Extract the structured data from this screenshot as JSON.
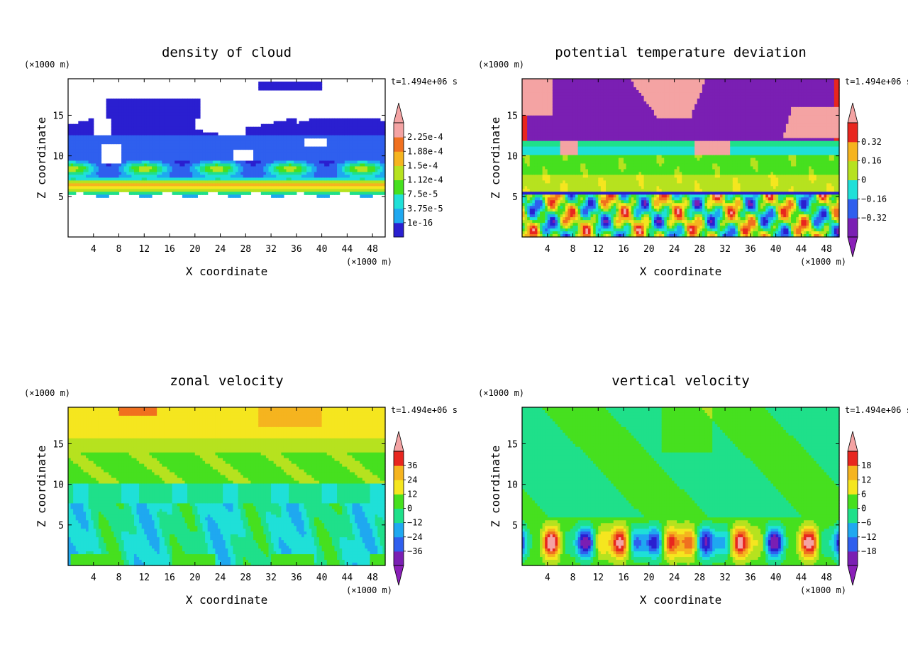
{
  "chart_data": [
    {
      "type": "heatmap",
      "title": "density of cloud",
      "xlabel": "X coordinate",
      "ylabel": "Z coordinate",
      "x_unit": "(×1000 m)",
      "y_unit": "(×1000 m)",
      "time_label": "t=1.494e+06 s",
      "xlim": [
        0,
        50
      ],
      "ylim": [
        0,
        19.5
      ],
      "x_ticks": [
        4,
        8,
        12,
        16,
        20,
        24,
        28,
        32,
        36,
        40,
        44,
        48
      ],
      "y_ticks": [
        5,
        10,
        15
      ],
      "colorbar": {
        "labels": [
          "2.25e-4",
          "1.88e-4",
          "1.5e-4",
          "1.12e-4",
          "7.5e-5",
          "3.75e-5",
          "1e-16"
        ],
        "arrow_top": true,
        "arrow_bottom": false
      },
      "description_field": "cloud"
    },
    {
      "type": "heatmap",
      "title": "potential temperature deviation",
      "xlabel": "X coordinate",
      "ylabel": "Z coordinate",
      "x_unit": "(×1000 m)",
      "y_unit": "(×1000 m)",
      "time_label": "t=1.494e+06 s",
      "xlim": [
        0,
        50
      ],
      "ylim": [
        0,
        19.5
      ],
      "x_ticks": [
        4,
        8,
        12,
        16,
        20,
        24,
        28,
        32,
        36,
        40,
        44,
        48
      ],
      "y_ticks": [
        5,
        10,
        15
      ],
      "colorbar": {
        "labels": [
          "0.32",
          "0.16",
          "0",
          "−0.16",
          "−0.32"
        ],
        "arrow_top": true,
        "arrow_bottom": true
      },
      "description_field": "theta"
    },
    {
      "type": "heatmap",
      "title": "zonal velocity",
      "xlabel": "X coordinate",
      "ylabel": "Z coordinate",
      "x_unit": "(×1000 m)",
      "y_unit": "(×1000 m)",
      "time_label": "t=1.494e+06 s",
      "xlim": [
        0,
        50
      ],
      "ylim": [
        0,
        19.5
      ],
      "x_ticks": [
        4,
        8,
        12,
        16,
        20,
        24,
        28,
        32,
        36,
        40,
        44,
        48
      ],
      "y_ticks": [
        5,
        10,
        15
      ],
      "colorbar": {
        "labels": [
          "36",
          "24",
          "12",
          "0",
          "−12",
          "−24",
          "−36"
        ],
        "arrow_top": true,
        "arrow_bottom": true
      },
      "description_field": "zonal"
    },
    {
      "type": "heatmap",
      "title": "vertical velocity",
      "xlabel": "X coordinate",
      "ylabel": "Z coordinate",
      "x_unit": "(×1000 m)",
      "y_unit": "(×1000 m)",
      "time_label": "t=1.494e+06 s",
      "xlim": [
        0,
        50
      ],
      "ylim": [
        0,
        19.5
      ],
      "x_ticks": [
        4,
        8,
        12,
        16,
        20,
        24,
        28,
        32,
        36,
        40,
        44,
        48
      ],
      "y_ticks": [
        5,
        10,
        15
      ],
      "colorbar": {
        "labels": [
          "18",
          "12",
          "6",
          "0",
          "−6",
          "−12",
          "−18"
        ],
        "arrow_top": true,
        "arrow_bottom": true
      },
      "description_field": "vertical"
    }
  ],
  "palette": [
    "#7a1fb3",
    "#2a1fd0",
    "#2f5fee",
    "#1fa8f0",
    "#1fe0d8",
    "#1fe08a",
    "#46e01f",
    "#b6e21f",
    "#f5e61f",
    "#f5b41f",
    "#f0701f",
    "#e8261f",
    "#f4a3a3"
  ]
}
